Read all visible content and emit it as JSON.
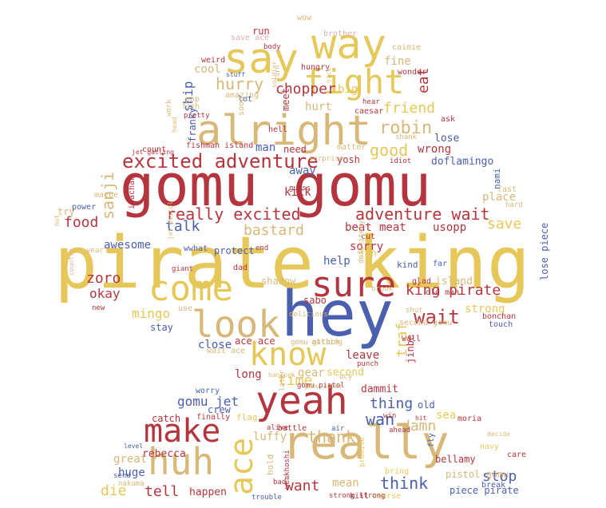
{
  "colors": {
    "red": "#b5353e",
    "yellow": "#e6c85a",
    "tan": "#d8b878",
    "blue": "#4a5fae",
    "pink": "#e0aeb0",
    "lightblue": "#9aa6d4",
    "paleyellow": "#efdc9a"
  },
  "words": [
    {
      "text": "pirate king",
      "color": "yellow"
    },
    {
      "text": "gomu gomu",
      "color": "red"
    },
    {
      "text": "hey",
      "color": "blue"
    },
    {
      "text": "really",
      "color": "tan"
    },
    {
      "text": "yeah",
      "color": "red"
    },
    {
      "text": "huh",
      "color": "tan"
    },
    {
      "text": "alright",
      "color": "tan"
    },
    {
      "text": "say",
      "color": "yellow"
    },
    {
      "text": "way",
      "color": "yellow"
    },
    {
      "text": "fight",
      "color": "yellow"
    },
    {
      "text": "come",
      "color": "yellow"
    },
    {
      "text": "look",
      "color": "tan"
    },
    {
      "text": "sure",
      "color": "red"
    },
    {
      "text": "know",
      "color": "yellow"
    },
    {
      "text": "make",
      "color": "red"
    },
    {
      "text": "ace",
      "color": "yellow"
    },
    {
      "text": "excited adventure",
      "color": "red"
    },
    {
      "text": "really excited",
      "color": "red"
    },
    {
      "text": "adventure wait",
      "color": "red"
    },
    {
      "text": "robin",
      "color": "tan"
    },
    {
      "text": "good",
      "color": "yellow"
    },
    {
      "text": "friend",
      "color": "yellow"
    },
    {
      "text": "chopper",
      "color": "red"
    },
    {
      "text": "hurry",
      "color": "tan"
    },
    {
      "text": "cool",
      "color": "tan"
    },
    {
      "text": "eat",
      "color": "red"
    },
    {
      "text": "sanji",
      "color": "tan"
    },
    {
      "text": "bastard",
      "color": "tan"
    },
    {
      "text": "food",
      "color": "red"
    },
    {
      "text": "talk",
      "color": "blue"
    },
    {
      "text": "save",
      "color": "yellow"
    },
    {
      "text": "king pirate",
      "color": "red"
    },
    {
      "text": "wait",
      "color": "red"
    },
    {
      "text": "zoro",
      "color": "red"
    },
    {
      "text": "okay",
      "color": "red"
    },
    {
      "text": "mingo",
      "color": "yellow"
    },
    {
      "text": "time",
      "color": "yellow"
    },
    {
      "text": "gomu jet",
      "color": "blue"
    },
    {
      "text": "thing",
      "color": "blue"
    },
    {
      "text": "wan",
      "color": "blue"
    },
    {
      "text": "damn",
      "color": "tan"
    },
    {
      "text": "thank",
      "color": "tan"
    },
    {
      "text": "think",
      "color": "blue"
    },
    {
      "text": "stop",
      "color": "blue"
    },
    {
      "text": "tell",
      "color": "red"
    },
    {
      "text": "die",
      "color": "yellow"
    },
    {
      "text": "want",
      "color": "red"
    },
    {
      "text": "mean",
      "color": "tan"
    },
    {
      "text": "huge",
      "color": "blue"
    },
    {
      "text": "great",
      "color": "tan"
    },
    {
      "text": "luffy",
      "color": "tan"
    },
    {
      "text": "rebecca",
      "color": "red"
    },
    {
      "text": "strong",
      "color": "yellow"
    },
    {
      "text": "island",
      "color": "tan"
    },
    {
      "text": "traf",
      "color": "yellow"
    },
    {
      "text": "stay",
      "color": "blue"
    },
    {
      "text": "close",
      "color": "blue"
    },
    {
      "text": "leave",
      "color": "red"
    },
    {
      "text": "second",
      "color": "yellow"
    },
    {
      "text": "long",
      "color": "red"
    },
    {
      "text": "gear",
      "color": "tan"
    },
    {
      "text": "dammit",
      "color": "red"
    },
    {
      "text": "crew",
      "color": "blue"
    },
    {
      "text": "happen",
      "color": "red"
    },
    {
      "text": "piece pirate",
      "color": "blue"
    },
    {
      "text": "pistol gomu",
      "color": "tan"
    },
    {
      "text": "bellamy",
      "color": "red"
    },
    {
      "text": "sea",
      "color": "yellow"
    },
    {
      "text": "ship",
      "color": "blue"
    },
    {
      "text": "man",
      "color": "blue"
    },
    {
      "text": "meet",
      "color": "red"
    },
    {
      "text": "hurt",
      "color": "tan"
    },
    {
      "text": "big",
      "color": "yellow"
    },
    {
      "text": "fine",
      "color": "tan"
    },
    {
      "text": "run",
      "color": "red"
    },
    {
      "text": "wrong",
      "color": "red"
    },
    {
      "text": "lose",
      "color": "blue"
    },
    {
      "text": "doflamingo",
      "color": "blue"
    },
    {
      "text": "yosh",
      "color": "red"
    },
    {
      "text": "away",
      "color": "blue"
    },
    {
      "text": "kick",
      "color": "red"
    },
    {
      "text": "need",
      "color": "red"
    },
    {
      "text": "beat",
      "color": "red"
    },
    {
      "text": "meat",
      "color": "red"
    },
    {
      "text": "usopp",
      "color": "red"
    },
    {
      "text": "place",
      "color": "tan"
    },
    {
      "text": "try",
      "color": "tan"
    },
    {
      "text": "awesome",
      "color": "blue"
    },
    {
      "text": "protect",
      "color": "blue"
    },
    {
      "text": "help",
      "color": "blue"
    },
    {
      "text": "sorry",
      "color": "red"
    },
    {
      "text": "fun",
      "color": "yellow"
    },
    {
      "text": "shadow",
      "color": "tan"
    },
    {
      "text": "sabo",
      "color": "red"
    },
    {
      "text": "jinbe",
      "color": "red"
    },
    {
      "text": "ace ace",
      "color": "red"
    },
    {
      "text": "lose piece",
      "color": "blue"
    },
    {
      "text": "franky",
      "color": "blue"
    },
    {
      "text": "fishman island",
      "color": "red"
    },
    {
      "text": "nami",
      "color": "blue"
    },
    {
      "text": "wwhat",
      "color": "blue"
    },
    {
      "text": "dad",
      "color": "red"
    },
    {
      "text": "end",
      "color": "red"
    },
    {
      "text": "kind",
      "color": "blue"
    },
    {
      "text": "far",
      "color": "blue"
    },
    {
      "text": "glad",
      "color": "red"
    },
    {
      "text": "old man",
      "color": "red"
    },
    {
      "text": "bonchan",
      "color": "red"
    },
    {
      "text": "touch",
      "color": "blue"
    },
    {
      "text": "catch",
      "color": "red"
    },
    {
      "text": "finally",
      "color": "red"
    },
    {
      "text": "flag",
      "color": "yellow"
    },
    {
      "text": "battle",
      "color": "red"
    },
    {
      "text": "alive",
      "color": "red"
    },
    {
      "text": "hold",
      "color": "tan"
    },
    {
      "text": "worry",
      "color": "blue"
    },
    {
      "text": "old",
      "color": "blue"
    },
    {
      "text": "moria",
      "color": "red"
    },
    {
      "text": "win",
      "color": "red"
    },
    {
      "text": "ahead",
      "color": "red"
    },
    {
      "text": "fly",
      "color": "blue"
    },
    {
      "text": "care",
      "color": "red"
    },
    {
      "text": "navy",
      "color": "yellow"
    },
    {
      "text": "bring",
      "color": "yellow"
    },
    {
      "text": "break",
      "color": "blue"
    },
    {
      "text": "course",
      "color": "yellow"
    },
    {
      "text": "strong strong",
      "color": "red"
    },
    {
      "text": "kill",
      "color": "red"
    },
    {
      "text": "bad",
      "color": "red"
    },
    {
      "text": "trouble",
      "color": "blue"
    },
    {
      "text": "weakhoshi",
      "color": "red"
    },
    {
      "text": "promise",
      "color": "yellow"
    },
    {
      "text": "send",
      "color": "blue"
    },
    {
      "text": "nakama",
      "color": "tan"
    },
    {
      "text": "level",
      "color": "blue"
    },
    {
      "text": "wow",
      "color": "tan"
    },
    {
      "text": "brother",
      "color": "pink"
    },
    {
      "text": "save ace",
      "color": "pink"
    },
    {
      "text": "body",
      "color": "red"
    },
    {
      "text": "caimie",
      "color": "tan"
    },
    {
      "text": "weird",
      "color": "red"
    },
    {
      "text": "stuff",
      "color": "blue"
    },
    {
      "text": "hungry",
      "color": "red"
    },
    {
      "text": "wonder",
      "color": "red"
    },
    {
      "text": "turn",
      "color": "tan"
    },
    {
      "text": "soldier",
      "color": "tan"
    },
    {
      "text": "pop",
      "color": "tan"
    },
    {
      "text": "amazing",
      "color": "tan"
    },
    {
      "text": "lot",
      "color": "blue"
    },
    {
      "text": "nice",
      "color": "tan"
    },
    {
      "text": "hear",
      "color": "red"
    },
    {
      "text": "caesar",
      "color": "red"
    },
    {
      "text": "ask",
      "color": "red"
    },
    {
      "text": "fish",
      "color": "tan"
    },
    {
      "text": "pretty",
      "color": "red"
    },
    {
      "text": "work",
      "color": "tan"
    },
    {
      "text": "soon",
      "color": "tan"
    },
    {
      "text": "hell",
      "color": "red"
    },
    {
      "text": "shank",
      "color": "tan"
    },
    {
      "text": "head",
      "color": "tan"
    },
    {
      "text": "count",
      "color": "red"
    },
    {
      "text": "jet gatling",
      "color": "red"
    },
    {
      "text": "matter",
      "color": "tan"
    },
    {
      "text": "surprise",
      "color": "tan"
    },
    {
      "text": "idiot",
      "color": "red"
    },
    {
      "text": "guess",
      "color": "red"
    },
    {
      "text": "maybe",
      "color": "tan"
    },
    {
      "text": "ivachan",
      "color": "red"
    },
    {
      "text": "power",
      "color": "blue"
    },
    {
      "text": "hot",
      "color": "tan"
    },
    {
      "text": "fast",
      "color": "tan"
    },
    {
      "text": "hard",
      "color": "tan"
    },
    {
      "text": "cut",
      "color": "red"
    },
    {
      "text": "year",
      "color": "tan"
    },
    {
      "text": "country",
      "color": "pink"
    },
    {
      "text": "new",
      "color": "red"
    },
    {
      "text": "jet pistol",
      "color": "tan"
    },
    {
      "text": "giant",
      "color": "red"
    },
    {
      "text": "definitely",
      "color": "tan"
    },
    {
      "text": "brook",
      "color": "tan"
    },
    {
      "text": "shut",
      "color": "tan"
    },
    {
      "text": "use",
      "color": "tan"
    },
    {
      "text": "delicious",
      "color": "tan"
    },
    {
      "text": "second gomu",
      "color": "tan"
    },
    {
      "text": "wall",
      "color": "red"
    },
    {
      "text": "gomu gatling",
      "color": "tan"
    },
    {
      "text": "wait ace",
      "color": "tan"
    },
    {
      "text": "attack",
      "color": "tan"
    },
    {
      "text": "punch",
      "color": "red"
    },
    {
      "text": "gomu pistol",
      "color": "red"
    },
    {
      "text": "hancock",
      "color": "tan"
    },
    {
      "text": "ucy",
      "color": "tan"
    },
    {
      "text": "gomu super",
      "color": "tan"
    },
    {
      "text": "later",
      "color": "tan"
    },
    {
      "text": "air",
      "color": "blue"
    },
    {
      "text": "hit",
      "color": "red"
    },
    {
      "text": "decide",
      "color": "tan"
    },
    {
      "text": "treasure",
      "color": "tan"
    },
    {
      "text": "sunny",
      "color": "lightblue"
    }
  ]
}
